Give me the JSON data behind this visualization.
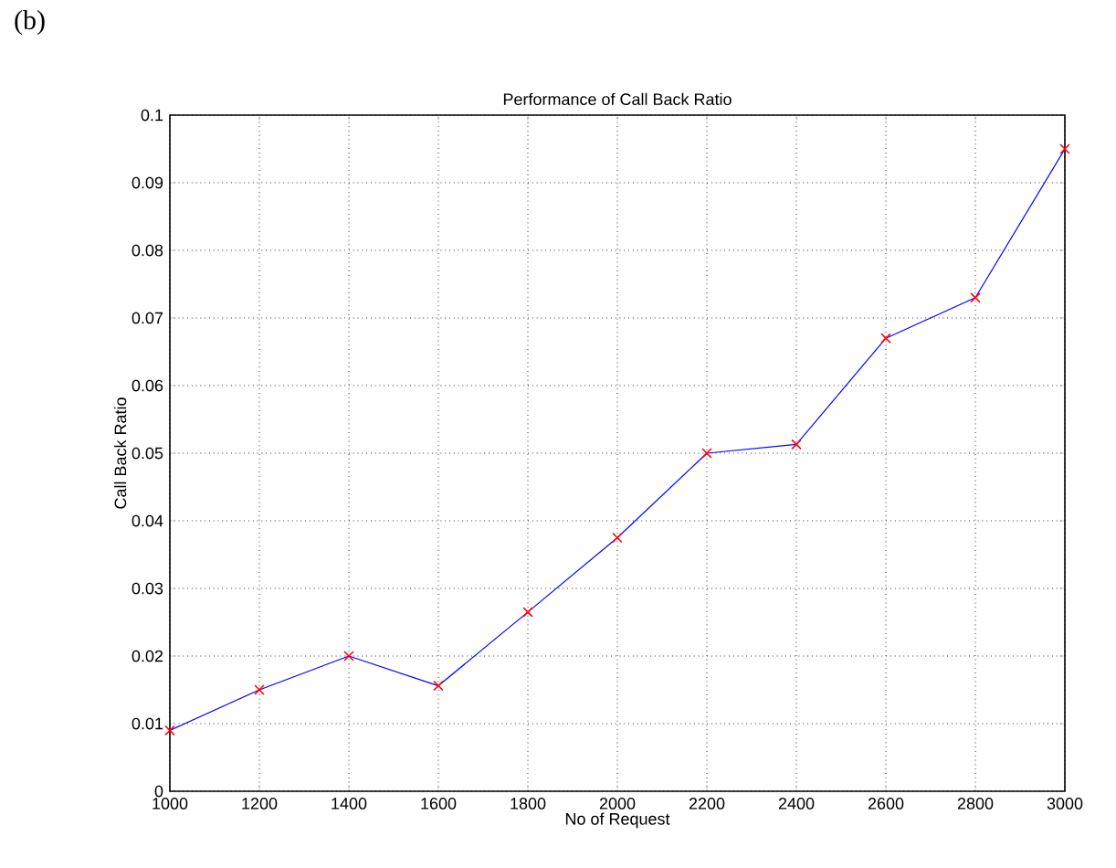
{
  "chart_data": {
    "type": "line",
    "title": "Performance of Call Back Ratio",
    "xlabel": "No of Request",
    "ylabel": "Call Back Ratio",
    "annotations": [
      "(b)"
    ],
    "x": [
      1000,
      1200,
      1400,
      1600,
      1800,
      2000,
      2200,
      2400,
      2600,
      2800,
      3000
    ],
    "series": [
      {
        "color": "#0000ff",
        "marker": "none",
        "values": [
          0.009,
          0.015,
          0.02,
          0.0156,
          0.0265,
          0.0375,
          0.05,
          0.0513,
          0.067,
          0.073,
          0.095
        ]
      },
      {
        "type": "scatter",
        "color": "#ff0000",
        "values": [
          0.009,
          0.015,
          0.02,
          0.0156,
          0.0265,
          0.0375,
          0.05,
          0.0513,
          0.067,
          0.073,
          0.095
        ]
      }
    ],
    "xlim": [
      1000,
      3000
    ],
    "xticks": [
      1000,
      1200,
      1400,
      1600,
      1800,
      2000,
      2200,
      2400,
      2600,
      2800,
      3000
    ],
    "ylim": [
      0,
      0.1
    ],
    "yticks": [
      0,
      0.01,
      0.02,
      0.03,
      0.04,
      0.05,
      0.06,
      0.07,
      0.08,
      0.09,
      0.1
    ],
    "grid": true,
    "marker": "cross",
    "line_style": "solid"
  }
}
